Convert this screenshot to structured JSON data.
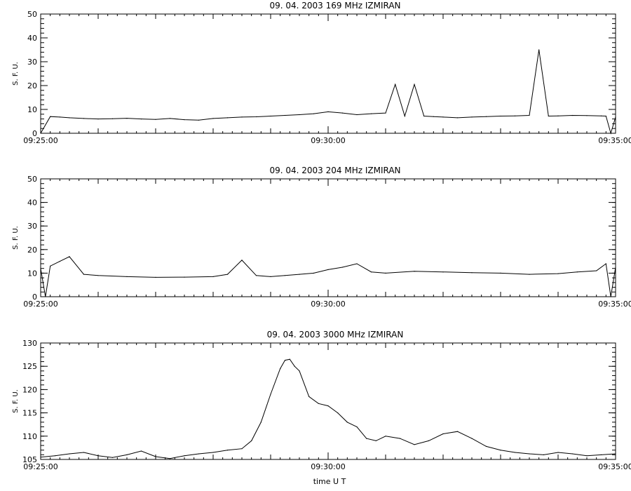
{
  "figure": {
    "time_axis_label": "time  U T"
  },
  "chart_data": [
    {
      "type": "line",
      "title": "09. 04. 2003   169 MHz   IZMIRAN",
      "ylabel": "S. F. U.",
      "xlabel": "",
      "xlim": [
        "09:25:00",
        "09:35:00"
      ],
      "ylim": [
        0,
        50
      ],
      "x_tick_labels": [
        "09:25:00",
        "09:30:00",
        "09:35:00"
      ],
      "y_ticks": [
        0,
        10,
        20,
        30,
        40,
        50
      ],
      "grid": false,
      "series": [
        {
          "x": [
            "09:25:00",
            "09:25:10",
            "09:25:20",
            "09:25:30",
            "09:25:45",
            "09:26:00",
            "09:26:15",
            "09:26:30",
            "09:26:45",
            "09:27:00",
            "09:27:15",
            "09:27:30",
            "09:27:45",
            "09:28:00",
            "09:28:15",
            "09:28:30",
            "09:28:45",
            "09:29:00",
            "09:29:15",
            "09:29:30",
            "09:29:45",
            "09:30:00",
            "09:30:15",
            "09:30:30",
            "09:30:45",
            "09:31:00",
            "09:31:10",
            "09:31:20",
            "09:31:30",
            "09:31:40",
            "09:31:50",
            "09:32:00",
            "09:32:15",
            "09:32:30",
            "09:32:45",
            "09:33:00",
            "09:33:15",
            "09:33:30",
            "09:33:40",
            "09:33:50",
            "09:34:00",
            "09:34:15",
            "09:34:30",
            "09:34:45",
            "09:34:50",
            "09:34:55",
            "09:35:00"
          ],
          "values": [
            0,
            7,
            6.8,
            6.5,
            6.2,
            6.0,
            6.1,
            6.3,
            6.0,
            5.8,
            6.2,
            5.7,
            5.5,
            6.2,
            6.5,
            6.8,
            6.9,
            7.2,
            7.5,
            7.8,
            8.2,
            9.0,
            8.5,
            7.8,
            8.2,
            8.5,
            20.5,
            7.2,
            20.5,
            7.2,
            7.0,
            6.8,
            6.5,
            6.8,
            7.0,
            7.2,
            7.3,
            7.5,
            35,
            7.2,
            7.3,
            7.5,
            7.4,
            7.3,
            7.2,
            0,
            6.8
          ]
        }
      ]
    },
    {
      "type": "line",
      "title": "09. 04. 2003   204 MHz   IZMIRAN",
      "ylabel": "S. F. U.",
      "xlabel": "",
      "xlim": [
        "09:25:00",
        "09:35:00"
      ],
      "ylim": [
        0,
        50
      ],
      "x_tick_labels": [
        "09:25:00",
        "09:30:00",
        "09:35:00"
      ],
      "y_ticks": [
        0,
        10,
        20,
        30,
        40,
        50
      ],
      "grid": false,
      "series": [
        {
          "x": [
            "09:25:00",
            "09:25:05",
            "09:25:10",
            "09:25:20",
            "09:25:30",
            "09:25:45",
            "09:26:00",
            "09:26:30",
            "09:27:00",
            "09:27:30",
            "09:28:00",
            "09:28:15",
            "09:28:30",
            "09:28:45",
            "09:29:00",
            "09:29:15",
            "09:29:30",
            "09:29:45",
            "09:30:00",
            "09:30:15",
            "09:30:30",
            "09:30:45",
            "09:31:00",
            "09:31:30",
            "09:32:00",
            "09:32:30",
            "09:33:00",
            "09:33:30",
            "09:34:00",
            "09:34:20",
            "09:34:40",
            "09:34:50",
            "09:34:55",
            "09:35:00"
          ],
          "values": [
            12,
            0,
            13,
            15,
            17,
            9.5,
            9.0,
            8.5,
            8.2,
            8.3,
            8.5,
            9.5,
            15.5,
            9.0,
            8.5,
            9.0,
            9.5,
            10.0,
            11.5,
            12.5,
            14.0,
            10.5,
            10.0,
            10.8,
            10.5,
            10.2,
            10.0,
            9.5,
            9.8,
            10.5,
            11.0,
            14.0,
            0,
            12.5
          ]
        }
      ]
    },
    {
      "type": "line",
      "title": "09. 04. 2003   3000 MHz   IZMIRAN",
      "ylabel": "S. F. U.",
      "xlabel": "time  U T",
      "xlim": [
        "09:25:00",
        "09:35:00"
      ],
      "ylim": [
        105,
        130
      ],
      "x_tick_labels": [
        "09:25:00",
        "09:30:00",
        "09:35:00"
      ],
      "y_ticks": [
        105,
        110,
        115,
        120,
        125,
        130
      ],
      "grid": false,
      "series": [
        {
          "x": [
            "09:25:00",
            "09:25:15",
            "09:25:30",
            "09:25:45",
            "09:26:00",
            "09:26:15",
            "09:26:30",
            "09:26:45",
            "09:27:00",
            "09:27:15",
            "09:27:30",
            "09:27:45",
            "09:28:00",
            "09:28:15",
            "09:28:30",
            "09:28:40",
            "09:28:50",
            "09:29:00",
            "09:29:10",
            "09:29:15",
            "09:29:20",
            "09:29:25",
            "09:29:30",
            "09:29:40",
            "09:29:50",
            "09:30:00",
            "09:30:10",
            "09:30:20",
            "09:30:30",
            "09:30:40",
            "09:30:50",
            "09:31:00",
            "09:31:15",
            "09:31:30",
            "09:31:45",
            "09:32:00",
            "09:32:15",
            "09:32:30",
            "09:32:45",
            "09:33:00",
            "09:33:15",
            "09:33:30",
            "09:33:45",
            "09:34:00",
            "09:34:15",
            "09:34:30",
            "09:34:45",
            "09:35:00"
          ],
          "values": [
            105.5,
            105.8,
            106.2,
            106.5,
            105.8,
            105.4,
            106.0,
            106.8,
            105.6,
            105.2,
            105.8,
            106.2,
            106.5,
            107.0,
            107.3,
            109.0,
            113.0,
            119.0,
            124.5,
            126.3,
            126.5,
            125.0,
            124.0,
            118.5,
            117.0,
            116.5,
            115.0,
            113.0,
            112.0,
            109.5,
            109.0,
            110.0,
            109.5,
            108.2,
            109.0,
            110.5,
            111.0,
            109.5,
            107.8,
            107.0,
            106.5,
            106.2,
            106.0,
            106.5,
            106.2,
            105.8,
            106.0,
            106.2
          ]
        }
      ]
    }
  ]
}
